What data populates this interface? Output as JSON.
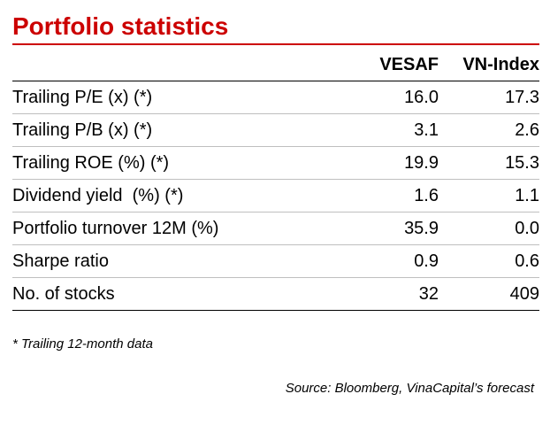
{
  "title": "Portfolio statistics",
  "colors": {
    "title": "#cc0000"
  },
  "table": {
    "headers": [
      "",
      "VESAF",
      "VN-Index"
    ],
    "rows": [
      {
        "label": "Trailing P/E (x) (*)",
        "vesaf": "16.0",
        "vnindex": "17.3"
      },
      {
        "label": "Trailing P/B (x) (*)",
        "vesaf": "3.1",
        "vnindex": "2.6"
      },
      {
        "label": "Trailing ROE (%) (*)",
        "vesaf": "19.9",
        "vnindex": "15.3"
      },
      {
        "label": "Dividend yield  (%) (*)",
        "vesaf": "1.6",
        "vnindex": "1.1"
      },
      {
        "label": "Portfolio turnover 12M (%)",
        "vesaf": "35.9",
        "vnindex": "0.0"
      },
      {
        "label": "Sharpe ratio",
        "vesaf": "0.9",
        "vnindex": "0.6"
      },
      {
        "label": "No. of stocks",
        "vesaf": "32",
        "vnindex": "409"
      }
    ]
  },
  "footnote": "* Trailing 12-month data",
  "source": "Source: Bloomberg, VinaCapital’s forecast"
}
